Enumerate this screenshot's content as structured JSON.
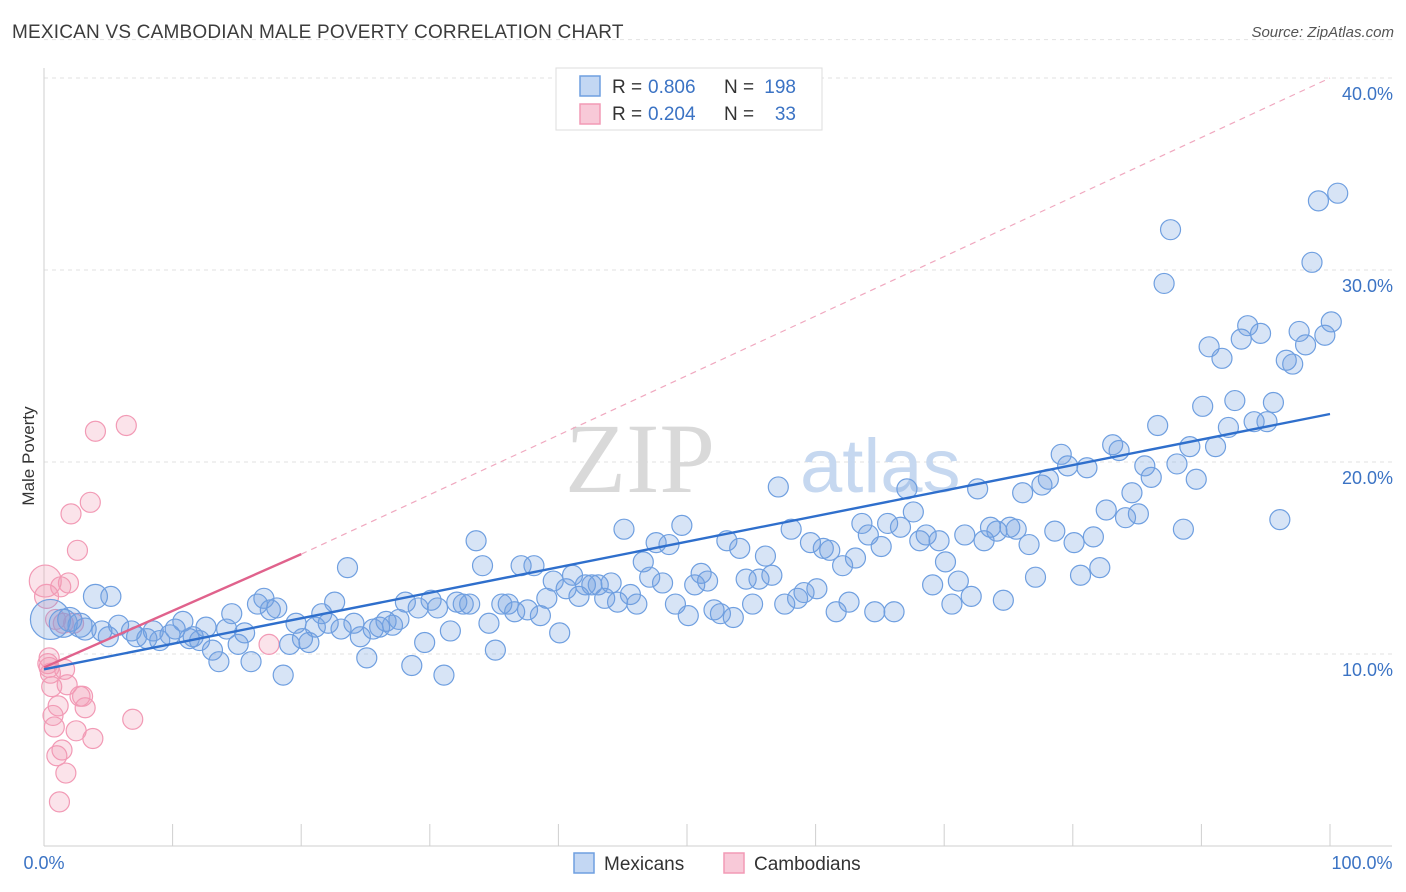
{
  "title": "MEXICAN VS CAMBODIAN MALE POVERTY CORRELATION CHART",
  "source": "Source: ZipAtlas.com",
  "colors": {
    "mexicans": "#6f9fe0",
    "mexicans_line": "#2f6fcc",
    "cambodians": "#f29ab5",
    "cambodians_line": "#e0628c",
    "tick_text": "#3b73c4"
  },
  "legend": {
    "rows": [
      {
        "r_label": "R =",
        "r_value": "0.806",
        "n_label": "N =",
        "n_value": "198"
      },
      {
        "r_label": "R =",
        "r_value": "0.204",
        "n_label": "N =",
        "n_value": "33"
      }
    ]
  },
  "watermark": {
    "zip": "ZIP",
    "atlas": "atlas"
  },
  "chart_data": {
    "type": "scatter",
    "title": "MEXICAN VS CAMBODIAN MALE POVERTY CORRELATION CHART",
    "xlabel": "",
    "ylabel": "Male Poverty",
    "xlim": [
      0,
      100
    ],
    "ylim": [
      0,
      42
    ],
    "x_tick_labels": [
      "0.0%",
      "100.0%"
    ],
    "y_ticks": [
      10,
      20,
      30,
      40
    ],
    "y_tick_labels": [
      "10.0%",
      "20.0%",
      "30.0%",
      "40.0%"
    ],
    "grid": true,
    "legend_position": "top-center",
    "series": [
      {
        "name": "Mexicans",
        "regression": {
          "x": [
            0,
            100
          ],
          "y": [
            9.2,
            22.5
          ]
        },
        "points": [
          [
            0.5,
            11.8,
            20
          ],
          [
            1.5,
            11.6,
            14
          ],
          [
            2,
            11.8,
            12
          ],
          [
            2.8,
            11.5,
            12
          ],
          [
            3.2,
            11.3,
            11
          ],
          [
            4,
            13.0,
            12
          ],
          [
            4.5,
            11.2,
            10
          ],
          [
            5,
            10.9,
            10
          ],
          [
            5.2,
            13.0,
            10
          ],
          [
            5.8,
            11.5,
            10
          ],
          [
            6.8,
            11.2,
            10
          ],
          [
            7.2,
            10.9,
            10
          ],
          [
            8,
            10.8,
            10
          ],
          [
            8.5,
            11.2,
            10
          ],
          [
            9,
            10.7,
            10
          ],
          [
            9.8,
            11.0,
            10
          ],
          [
            10.2,
            11.3,
            10
          ],
          [
            10.8,
            11.7,
            10
          ],
          [
            11.3,
            10.8,
            10
          ],
          [
            11.6,
            10.9,
            10
          ],
          [
            12.1,
            10.7,
            10
          ],
          [
            12.6,
            11.4,
            10
          ],
          [
            13.1,
            10.2,
            10
          ],
          [
            13.6,
            9.6,
            10
          ],
          [
            14.2,
            11.3,
            10
          ],
          [
            14.6,
            12.1,
            10
          ],
          [
            15.1,
            10.5,
            10
          ],
          [
            15.6,
            11.1,
            10
          ],
          [
            16.1,
            9.6,
            10
          ],
          [
            16.6,
            12.6,
            10
          ],
          [
            17.1,
            12.9,
            10
          ],
          [
            17.6,
            12.3,
            10
          ],
          [
            18.1,
            12.4,
            10
          ],
          [
            18.6,
            8.9,
            10
          ],
          [
            19.1,
            10.5,
            10
          ],
          [
            19.6,
            11.6,
            10
          ],
          [
            20.1,
            10.8,
            10
          ],
          [
            20.6,
            10.6,
            10
          ],
          [
            21.1,
            11.4,
            10
          ],
          [
            21.6,
            12.1,
            10
          ],
          [
            22.1,
            11.6,
            10
          ],
          [
            22.6,
            12.7,
            10
          ],
          [
            23.1,
            11.3,
            10
          ],
          [
            23.6,
            14.5,
            10
          ],
          [
            24.1,
            11.6,
            10
          ],
          [
            24.6,
            10.9,
            10
          ],
          [
            25.1,
            9.8,
            10
          ],
          [
            25.6,
            11.3,
            10
          ],
          [
            26.1,
            11.4,
            10
          ],
          [
            26.6,
            11.7,
            10
          ],
          [
            27.1,
            11.5,
            10
          ],
          [
            27.6,
            11.8,
            10
          ],
          [
            28.1,
            12.7,
            10
          ],
          [
            28.6,
            9.4,
            10
          ],
          [
            29.1,
            12.4,
            10
          ],
          [
            29.6,
            10.6,
            10
          ],
          [
            30.1,
            12.8,
            10
          ],
          [
            30.6,
            12.4,
            10
          ],
          [
            31.1,
            8.9,
            10
          ],
          [
            31.6,
            11.2,
            10
          ],
          [
            32.1,
            12.7,
            10
          ],
          [
            32.6,
            12.6,
            10
          ],
          [
            33.1,
            12.6,
            10
          ],
          [
            33.6,
            15.9,
            10
          ],
          [
            34.1,
            14.6,
            10
          ],
          [
            34.6,
            11.6,
            10
          ],
          [
            35.1,
            10.2,
            10
          ],
          [
            35.6,
            12.6,
            10
          ],
          [
            36.1,
            12.6,
            10
          ],
          [
            36.6,
            12.2,
            10
          ],
          [
            37.1,
            14.6,
            10
          ],
          [
            37.6,
            12.3,
            10
          ],
          [
            38.1,
            14.6,
            10
          ],
          [
            38.6,
            12.0,
            10
          ],
          [
            39.1,
            12.9,
            10
          ],
          [
            39.6,
            13.8,
            10
          ],
          [
            40.1,
            11.1,
            10
          ],
          [
            40.6,
            13.4,
            10
          ],
          [
            41.1,
            14.1,
            10
          ],
          [
            41.6,
            13.0,
            10
          ],
          [
            42.1,
            13.6,
            10
          ],
          [
            42.6,
            13.6,
            10
          ],
          [
            43.1,
            13.6,
            10
          ],
          [
            43.6,
            12.9,
            10
          ],
          [
            44.1,
            13.7,
            10
          ],
          [
            44.6,
            12.7,
            10
          ],
          [
            45.1,
            16.5,
            10
          ],
          [
            45.6,
            13.1,
            10
          ],
          [
            46.1,
            12.6,
            10
          ],
          [
            46.6,
            14.8,
            10
          ],
          [
            47.1,
            14.0,
            10
          ],
          [
            47.6,
            15.8,
            10
          ],
          [
            48.1,
            13.7,
            10
          ],
          [
            48.6,
            15.7,
            10
          ],
          [
            49.1,
            12.6,
            10
          ],
          [
            49.6,
            16.7,
            10
          ],
          [
            50.1,
            12.0,
            10
          ],
          [
            50.6,
            13.6,
            10
          ],
          [
            51.1,
            14.2,
            10
          ],
          [
            51.6,
            13.8,
            10
          ],
          [
            52.1,
            12.3,
            10
          ],
          [
            52.6,
            12.1,
            10
          ],
          [
            53.1,
            15.9,
            10
          ],
          [
            53.6,
            11.9,
            10
          ],
          [
            54.1,
            15.5,
            10
          ],
          [
            54.6,
            13.9,
            10
          ],
          [
            55.1,
            12.6,
            10
          ],
          [
            55.6,
            13.9,
            10
          ],
          [
            56.1,
            15.1,
            10
          ],
          [
            56.6,
            14.1,
            10
          ],
          [
            57.1,
            18.7,
            10
          ],
          [
            57.6,
            12.6,
            10
          ],
          [
            58.1,
            16.5,
            10
          ],
          [
            58.6,
            12.9,
            10
          ],
          [
            59.1,
            13.2,
            10
          ],
          [
            59.6,
            15.8,
            10
          ],
          [
            60.1,
            13.4,
            10
          ],
          [
            60.6,
            15.5,
            10
          ],
          [
            61.1,
            15.4,
            10
          ],
          [
            61.6,
            12.2,
            10
          ],
          [
            62.1,
            14.6,
            10
          ],
          [
            62.6,
            12.7,
            10
          ],
          [
            63.1,
            15.0,
            10
          ],
          [
            63.6,
            16.8,
            10
          ],
          [
            64.1,
            16.2,
            10
          ],
          [
            64.6,
            12.2,
            10
          ],
          [
            65.1,
            15.6,
            10
          ],
          [
            65.6,
            16.8,
            10
          ],
          [
            66.1,
            12.2,
            10
          ],
          [
            66.6,
            16.6,
            10
          ],
          [
            67.1,
            18.6,
            10
          ],
          [
            67.6,
            17.4,
            10
          ],
          [
            68.1,
            15.9,
            10
          ],
          [
            68.6,
            16.2,
            10
          ],
          [
            69.1,
            13.6,
            10
          ],
          [
            69.6,
            15.9,
            10
          ],
          [
            70.1,
            14.8,
            10
          ],
          [
            70.6,
            12.6,
            10
          ],
          [
            71.1,
            13.8,
            10
          ],
          [
            71.6,
            16.2,
            10
          ],
          [
            72.1,
            13.0,
            10
          ],
          [
            72.6,
            18.6,
            10
          ],
          [
            73.1,
            15.9,
            10
          ],
          [
            73.6,
            16.6,
            10
          ],
          [
            74.1,
            16.4,
            10
          ],
          [
            74.6,
            12.8,
            10
          ],
          [
            75.1,
            16.6,
            10
          ],
          [
            75.6,
            16.5,
            10
          ],
          [
            76.1,
            18.4,
            10
          ],
          [
            76.6,
            15.7,
            10
          ],
          [
            77.1,
            14.0,
            10
          ],
          [
            77.6,
            18.8,
            10
          ],
          [
            78.1,
            19.1,
            10
          ],
          [
            78.6,
            16.4,
            10
          ],
          [
            79.1,
            20.4,
            10
          ],
          [
            79.6,
            19.8,
            10
          ],
          [
            80.1,
            15.8,
            10
          ],
          [
            80.6,
            14.1,
            10
          ],
          [
            81.1,
            19.7,
            10
          ],
          [
            81.6,
            16.1,
            10
          ],
          [
            82.1,
            14.5,
            10
          ],
          [
            82.6,
            17.5,
            10
          ],
          [
            83.1,
            20.9,
            10
          ],
          [
            83.6,
            20.6,
            10
          ],
          [
            84.1,
            17.1,
            10
          ],
          [
            84.6,
            18.4,
            10
          ],
          [
            85.1,
            17.3,
            10
          ],
          [
            85.6,
            19.8,
            10
          ],
          [
            86.1,
            19.2,
            10
          ],
          [
            86.6,
            21.9,
            10
          ],
          [
            87.1,
            29.3,
            10
          ],
          [
            87.6,
            32.1,
            10
          ],
          [
            88.1,
            19.9,
            10
          ],
          [
            88.6,
            16.5,
            10
          ],
          [
            89.1,
            20.8,
            10
          ],
          [
            89.6,
            19.1,
            10
          ],
          [
            90.1,
            22.9,
            10
          ],
          [
            90.6,
            26.0,
            10
          ],
          [
            91.1,
            20.8,
            10
          ],
          [
            91.6,
            25.4,
            10
          ],
          [
            92.1,
            21.8,
            10
          ],
          [
            92.6,
            23.2,
            10
          ],
          [
            93.1,
            26.4,
            10
          ],
          [
            93.6,
            27.1,
            10
          ],
          [
            94.1,
            22.1,
            10
          ],
          [
            94.6,
            26.7,
            10
          ],
          [
            95.1,
            22.1,
            10
          ],
          [
            95.6,
            23.1,
            10
          ],
          [
            96.1,
            17.0,
            10
          ],
          [
            96.6,
            25.3,
            10
          ],
          [
            97.1,
            25.1,
            10
          ],
          [
            97.6,
            26.8,
            10
          ],
          [
            98.1,
            26.1,
            10
          ],
          [
            98.6,
            30.4,
            10
          ],
          [
            99.1,
            33.6,
            10
          ],
          [
            99.6,
            26.6,
            10
          ],
          [
            100.1,
            27.3,
            10
          ],
          [
            100.6,
            34.0,
            10
          ]
        ]
      },
      {
        "name": "Cambodians",
        "regression": {
          "x": [
            0,
            20
          ],
          "y": [
            9.3,
            15.2
          ]
        },
        "trend_extension": {
          "x": [
            20,
            100
          ],
          "y": [
            15.2,
            40.0
          ]
        },
        "points": [
          [
            0.1,
            13.8,
            16
          ],
          [
            0.2,
            13.0,
            12
          ],
          [
            0.3,
            9.5,
            10
          ],
          [
            0.4,
            9.3,
            10
          ],
          [
            0.5,
            9.0,
            10
          ],
          [
            0.6,
            8.3,
            10
          ],
          [
            0.7,
            6.8,
            10
          ],
          [
            0.8,
            6.2,
            10
          ],
          [
            0.9,
            11.8,
            10
          ],
          [
            1.0,
            4.7,
            10
          ],
          [
            1.1,
            7.3,
            10
          ],
          [
            1.2,
            2.3,
            10
          ],
          [
            1.3,
            13.5,
            10
          ],
          [
            1.4,
            5.0,
            10
          ],
          [
            1.5,
            11.6,
            10
          ],
          [
            1.6,
            9.2,
            10
          ],
          [
            1.7,
            3.8,
            10
          ],
          [
            1.8,
            8.4,
            10
          ],
          [
            1.9,
            13.7,
            10
          ],
          [
            2.1,
            17.3,
            10
          ],
          [
            2.3,
            11.6,
            10
          ],
          [
            2.5,
            6.0,
            10
          ],
          [
            2.6,
            15.4,
            10
          ],
          [
            2.8,
            7.8,
            10
          ],
          [
            3.0,
            7.8,
            10
          ],
          [
            3.2,
            7.2,
            10
          ],
          [
            3.6,
            17.9,
            10
          ],
          [
            3.8,
            5.6,
            10
          ],
          [
            4.0,
            21.6,
            10
          ],
          [
            6.4,
            21.9,
            10
          ],
          [
            6.9,
            6.6,
            10
          ],
          [
            17.5,
            10.5,
            10
          ],
          [
            0.4,
            9.8,
            10
          ]
        ]
      }
    ]
  },
  "bottom_legend": {
    "items": [
      "Mexicans",
      "Cambodians"
    ]
  }
}
